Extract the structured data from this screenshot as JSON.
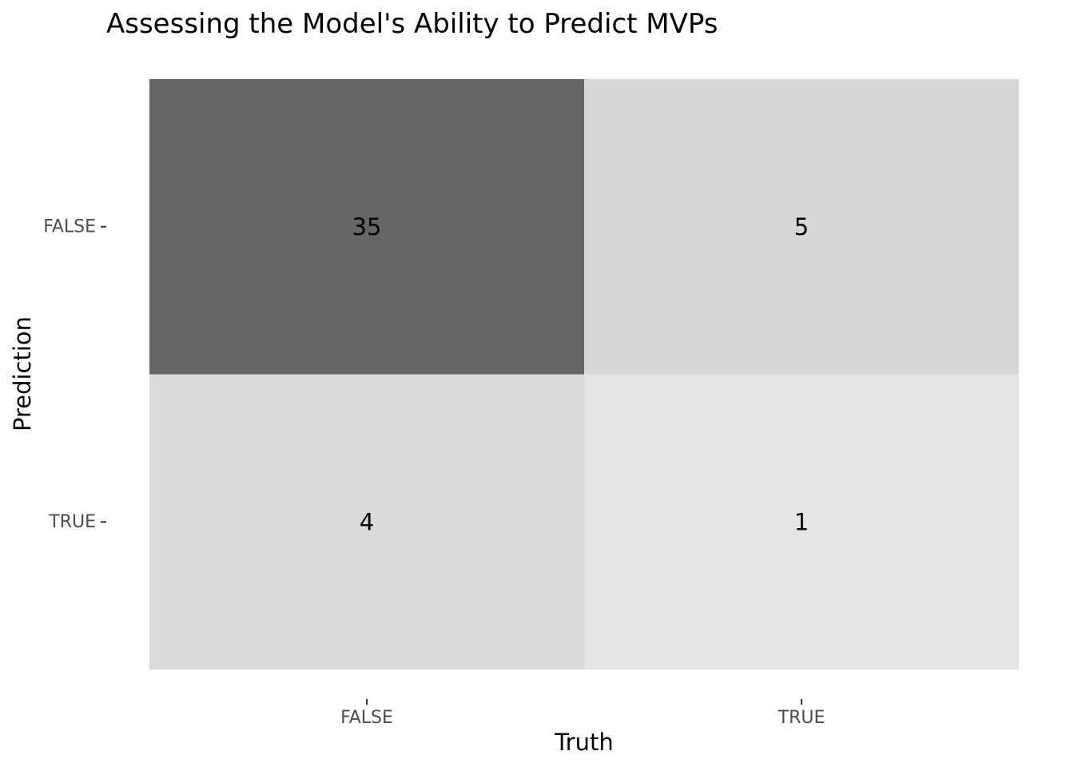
{
  "chart_data": {
    "type": "heatmap",
    "title": "Assessing the Model's Ability to Predict MVPs",
    "xlabel": "Truth",
    "ylabel": "Prediction",
    "x_categories": [
      "FALSE",
      "TRUE"
    ],
    "y_categories": [
      "FALSE",
      "TRUE"
    ],
    "cells": [
      {
        "truth": "FALSE",
        "prediction": "FALSE",
        "value": 35
      },
      {
        "truth": "TRUE",
        "prediction": "FALSE",
        "value": 5
      },
      {
        "truth": "FALSE",
        "prediction": "TRUE",
        "value": 4
      },
      {
        "truth": "TRUE",
        "prediction": "TRUE",
        "value": 1
      }
    ],
    "color_scale": {
      "low": "#e5e5e5",
      "high": "#666666"
    },
    "legend": "none",
    "grid": false
  }
}
